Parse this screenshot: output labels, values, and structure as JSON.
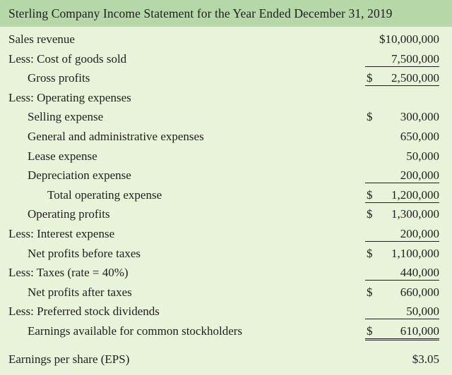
{
  "title": "Sterling Company Income Statement for the Year Ended December 31, 2019",
  "colors": {
    "header_bg": "#b6d8a8",
    "body_bg": "#e9f3d9",
    "text": "#1e1e1e"
  },
  "rows": [
    {
      "label": "Sales revenue",
      "indent": 0,
      "dollar": "",
      "amount": "$10,000,000",
      "rule": ""
    },
    {
      "label": "Less: Cost of goods sold",
      "indent": 0,
      "dollar": "",
      "amount": "7,500,000",
      "rule": "under"
    },
    {
      "label": "Gross profits",
      "indent": 1,
      "dollar": "$",
      "amount": "2,500,000",
      "rule": "under"
    },
    {
      "label": "Less: Operating expenses",
      "indent": 0,
      "dollar": "",
      "amount": "",
      "rule": ""
    },
    {
      "label": "Selling expense",
      "indent": 1,
      "dollar": "$",
      "amount": "300,000",
      "rule": ""
    },
    {
      "label": "General and administrative expenses",
      "indent": 1,
      "dollar": "",
      "amount": "650,000",
      "rule": ""
    },
    {
      "label": "Lease expense",
      "indent": 1,
      "dollar": "",
      "amount": "50,000",
      "rule": ""
    },
    {
      "label": "Depreciation expense",
      "indent": 1,
      "dollar": "",
      "amount": "200,000",
      "rule": "under"
    },
    {
      "label": "Total operating expense",
      "indent": 2,
      "dollar": "$",
      "amount": "1,200,000",
      "rule": "under"
    },
    {
      "label": "Operating profits",
      "indent": 1,
      "dollar": "$",
      "amount": "1,300,000",
      "rule": ""
    },
    {
      "label": "Less: Interest expense",
      "indent": 0,
      "dollar": "",
      "amount": "200,000",
      "rule": "under"
    },
    {
      "label": "Net profits before taxes",
      "indent": 1,
      "dollar": "$",
      "amount": "1,100,000",
      "rule": ""
    },
    {
      "label": "Less: Taxes (rate = 40%)",
      "indent": 0,
      "dollar": "",
      "amount": "440,000",
      "rule": "under"
    },
    {
      "label": "Net profits after taxes",
      "indent": 1,
      "dollar": "$",
      "amount": "660,000",
      "rule": ""
    },
    {
      "label": "Less: Preferred stock dividends",
      "indent": 0,
      "dollar": "",
      "amount": "50,000",
      "rule": "under"
    },
    {
      "label": "Earnings available for common stockholders",
      "indent": 1,
      "dollar": "$",
      "amount": "610,000",
      "rule": "double"
    }
  ],
  "eps": {
    "label": "Earnings per share (EPS)",
    "amount": "$3.05"
  }
}
